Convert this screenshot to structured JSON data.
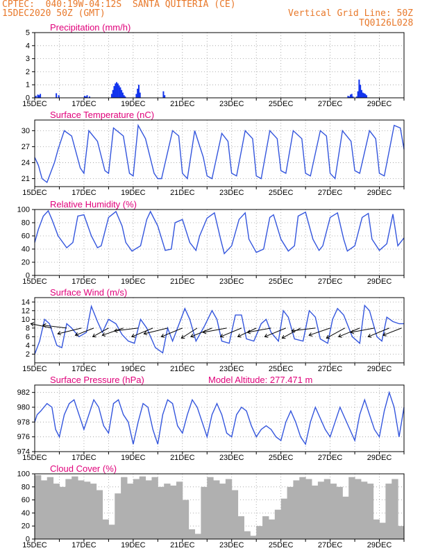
{
  "header": {
    "line1": "CPTEC:  040:19W-04:12S  SANTA QUITERIA (CE)",
    "line2": "15DEC2020 50Z (GMT)",
    "grid_note": "Vertical Grid Line: 50Z",
    "model_id": "TQ0126L028"
  },
  "colors": {
    "header": "#e8782a",
    "panel_title": "#e0007a",
    "series": "#3355dd",
    "precip_bar": "#1133ee",
    "cloud_bar": "#b0b0b0",
    "wind_arrow": "#000000",
    "axis": "#000000",
    "grid": "#9a9a9a"
  },
  "chart_data": [
    {
      "id": "precip",
      "type": "bar",
      "title": "Precipitation (mm/h)",
      "xlabels": [
        "15DEC",
        "17DEC",
        "19DEC",
        "21DEC",
        "23DEC",
        "25DEC",
        "27DEC",
        "29DEC"
      ],
      "ylim": [
        0,
        5
      ],
      "yticks": [
        0,
        1,
        2,
        3,
        4,
        5
      ],
      "x_range_days": [
        0,
        15
      ],
      "grid": true,
      "x": [
        0.02,
        0.1,
        0.15,
        0.2,
        0.85,
        0.95,
        2.0,
        2.05,
        2.1,
        2.2,
        3.1,
        3.15,
        3.2,
        3.25,
        3.3,
        3.35,
        3.4,
        3.45,
        3.5,
        3.55,
        3.6,
        3.65,
        4.1,
        4.15,
        4.2,
        4.25,
        5.2,
        5.25,
        12.7,
        12.75,
        12.8,
        12.85,
        12.9,
        13.05,
        13.1,
        13.15,
        13.2,
        13.25,
        13.3,
        13.35,
        13.4,
        13.45
      ],
      "values": [
        0.15,
        0.25,
        0.2,
        0.3,
        0.35,
        0.2,
        0.15,
        0.1,
        0.2,
        0.1,
        0.3,
        0.6,
        0.9,
        1.1,
        1.2,
        1.1,
        0.95,
        0.8,
        0.6,
        0.4,
        0.2,
        0.1,
        0.3,
        0.7,
        1.0,
        0.4,
        0.5,
        0.2,
        0.15,
        0.1,
        0.25,
        0.3,
        0.1,
        0.1,
        0.5,
        1.4,
        1.0,
        0.6,
        0.4,
        0.35,
        0.3,
        0.2
      ]
    },
    {
      "id": "temp",
      "type": "line",
      "title": "Surface Temperature (nC)",
      "xlabels": [
        "15DEC",
        "17DEC",
        "19DEC",
        "21DEC",
        "23DEC",
        "25DEC",
        "27DEC",
        "29DEC"
      ],
      "ylim": [
        19.5,
        32
      ],
      "yticks": [
        21,
        24,
        27,
        30
      ],
      "x_range_days": [
        0,
        15
      ],
      "grid": true,
      "x": [
        0,
        0.15,
        0.3,
        0.5,
        0.8,
        0.95,
        1.2,
        1.5,
        1.85,
        2.0,
        2.2,
        2.55,
        2.85,
        3.0,
        3.2,
        3.6,
        3.85,
        4.0,
        4.2,
        4.5,
        4.85,
        5.0,
        5.15,
        5.6,
        5.85,
        6.0,
        6.2,
        6.5,
        6.85,
        7.0,
        7.2,
        7.6,
        7.85,
        8.0,
        8.2,
        8.55,
        8.85,
        9.0,
        9.2,
        9.55,
        9.85,
        10.0,
        10.2,
        10.5,
        10.85,
        11.0,
        11.2,
        11.6,
        11.85,
        12.0,
        12.2,
        12.5,
        12.85,
        13.0,
        13.2,
        13.6,
        13.85,
        14.0,
        14.2,
        14.6,
        14.85,
        15.0
      ],
      "values": [
        25,
        23.5,
        21,
        20.3,
        24,
        26.5,
        30,
        29,
        23,
        22,
        30,
        28,
        22.5,
        22,
        30.5,
        29,
        22,
        21.5,
        31,
        28.5,
        22,
        21,
        21,
        30,
        29,
        22,
        21,
        30,
        25,
        21.5,
        21,
        29.5,
        28,
        22,
        21.5,
        30,
        28.5,
        21.5,
        21,
        30,
        28.5,
        22.5,
        22,
        30,
        28.5,
        22,
        21.5,
        30,
        29,
        22,
        21,
        30,
        28,
        22.5,
        22,
        30,
        28.5,
        22,
        21.5,
        31,
        30.5,
        26.5
      ]
    },
    {
      "id": "rh",
      "type": "line",
      "title": "Relative Humidity (%)",
      "xlabels": [
        "15DEC",
        "17DEC",
        "19DEC",
        "21DEC",
        "23DEC",
        "25DEC",
        "27DEC",
        "29DEC"
      ],
      "ylim": [
        0,
        100
      ],
      "yticks": [
        0,
        20,
        40,
        60,
        80,
        100
      ],
      "x_range_days": [
        0,
        15
      ],
      "grid": true,
      "x": [
        0,
        0.15,
        0.35,
        0.55,
        0.7,
        0.95,
        1.3,
        1.55,
        1.75,
        2.0,
        2.3,
        2.55,
        2.7,
        3.0,
        3.3,
        3.55,
        3.7,
        3.95,
        4.3,
        4.55,
        4.7,
        5.0,
        5.3,
        5.55,
        5.7,
        6.0,
        6.3,
        6.55,
        6.7,
        7.0,
        7.3,
        7.55,
        7.7,
        8.0,
        8.3,
        8.55,
        8.7,
        9.0,
        9.3,
        9.55,
        9.7,
        10.0,
        10.3,
        10.55,
        10.7,
        11.0,
        11.3,
        11.55,
        11.7,
        12.0,
        12.3,
        12.55,
        12.7,
        13.0,
        13.3,
        13.55,
        13.7,
        14.0,
        14.3,
        14.55,
        14.75,
        15.0
      ],
      "values": [
        50,
        70,
        90,
        98,
        85,
        60,
        42,
        50,
        90,
        92,
        60,
        42,
        45,
        88,
        97,
        75,
        50,
        37,
        45,
        85,
        97,
        75,
        38,
        40,
        80,
        85,
        50,
        38,
        60,
        87,
        95,
        55,
        33,
        45,
        85,
        95,
        55,
        35,
        40,
        88,
        92,
        55,
        37,
        45,
        90,
        96,
        55,
        38,
        45,
        88,
        95,
        55,
        37,
        45,
        88,
        94,
        55,
        38,
        48,
        93,
        45,
        57
      ]
    },
    {
      "id": "wind",
      "type": "line",
      "title": "Surface Wind (m/s)",
      "xlabels": [
        "15DEC",
        "17DEC",
        "19DEC",
        "21DEC",
        "23DEC",
        "25DEC",
        "27DEC",
        "29DEC"
      ],
      "ylim": [
        0,
        15
      ],
      "yticks": [
        2,
        4,
        6,
        8,
        10,
        12,
        14
      ],
      "x_range_days": [
        0,
        15
      ],
      "grid": true,
      "x": [
        0,
        0.2,
        0.4,
        0.6,
        0.9,
        1.1,
        1.3,
        1.5,
        1.8,
        2.1,
        2.3,
        2.55,
        2.75,
        3.0,
        3.3,
        3.55,
        3.8,
        4.05,
        4.3,
        4.55,
        4.9,
        5.2,
        5.4,
        5.6,
        5.9,
        6.1,
        6.3,
        6.55,
        6.9,
        7.2,
        7.4,
        7.6,
        7.9,
        8.15,
        8.4,
        8.6,
        8.9,
        9.2,
        9.4,
        9.6,
        9.9,
        10.1,
        10.3,
        10.55,
        10.9,
        11.15,
        11.4,
        11.6,
        11.9,
        12.1,
        12.3,
        12.55,
        12.9,
        13.2,
        13.4,
        13.6,
        13.9,
        14.1,
        14.3,
        14.55,
        14.8,
        15.0
      ],
      "values": [
        2,
        5,
        10,
        9,
        4,
        3.5,
        9,
        8,
        6,
        7,
        13,
        9.5,
        7,
        10,
        9,
        6.5,
        5,
        4.5,
        10,
        8,
        3.5,
        2.3,
        8,
        5,
        9.5,
        12.5,
        10,
        5,
        8.5,
        12,
        10,
        5,
        4.5,
        11,
        11,
        5.5,
        5,
        9,
        10,
        7,
        5,
        12,
        10.5,
        5.5,
        5,
        12,
        10.5,
        5.5,
        4.5,
        10,
        12.5,
        11,
        6,
        4.5,
        13.2,
        12,
        6,
        5,
        10.5,
        9.5,
        9,
        9
      ],
      "vectors": [
        {
          "x": 0.7,
          "u": -0.8,
          "v": 0.3
        },
        {
          "x": 1.3,
          "u": -0.9,
          "v": 0.2
        },
        {
          "x": 1.9,
          "u": -0.9,
          "v": -0.4
        },
        {
          "x": 2.4,
          "u": -0.7,
          "v": -0.5
        },
        {
          "x": 3.0,
          "u": -0.6,
          "v": -0.6
        },
        {
          "x": 3.6,
          "u": -0.8,
          "v": -0.5
        },
        {
          "x": 4.2,
          "u": -0.9,
          "v": -0.2
        },
        {
          "x": 4.8,
          "u": -0.8,
          "v": -0.6
        },
        {
          "x": 5.4,
          "u": -0.9,
          "v": -0.4
        },
        {
          "x": 6.0,
          "u": -0.8,
          "v": -0.6
        },
        {
          "x": 6.6,
          "u": -0.6,
          "v": -0.7
        },
        {
          "x": 7.2,
          "u": -0.8,
          "v": -0.6
        },
        {
          "x": 7.8,
          "u": -0.9,
          "v": -0.3
        },
        {
          "x": 8.4,
          "u": -0.8,
          "v": -0.6
        },
        {
          "x": 9.0,
          "u": -0.7,
          "v": -0.6
        },
        {
          "x": 9.6,
          "u": -0.9,
          "v": -0.3
        },
        {
          "x": 10.2,
          "u": -0.8,
          "v": -0.6
        },
        {
          "x": 10.8,
          "u": -0.7,
          "v": -0.7
        },
        {
          "x": 11.4,
          "u": -0.9,
          "v": -0.2
        },
        {
          "x": 12.0,
          "u": -0.8,
          "v": -0.5
        },
        {
          "x": 12.6,
          "u": -0.7,
          "v": -0.7
        },
        {
          "x": 13.2,
          "u": -0.8,
          "v": -0.6
        },
        {
          "x": 13.8,
          "u": -0.9,
          "v": -0.3
        },
        {
          "x": 14.4,
          "u": -0.8,
          "v": -0.6
        },
        {
          "x": 14.9,
          "u": -0.7,
          "v": -0.5
        }
      ]
    },
    {
      "id": "pres",
      "type": "line",
      "title": "Surface Pressure (hPa)",
      "subtitle": "Model Altitude: 277.471 m",
      "xlabels": [
        "15DEC",
        "17DEC",
        "19DEC",
        "21DEC",
        "23DEC",
        "25DEC",
        "27DEC",
        "29DEC"
      ],
      "ylim": [
        974,
        983
      ],
      "yticks": [
        974,
        976,
        978,
        980,
        982
      ],
      "x_range_days": [
        0,
        15
      ],
      "grid": true,
      "x": [
        0,
        0.1,
        0.25,
        0.5,
        0.7,
        0.85,
        1.0,
        1.2,
        1.4,
        1.6,
        1.8,
        2.0,
        2.2,
        2.4,
        2.6,
        2.8,
        3.0,
        3.2,
        3.4,
        3.6,
        3.8,
        4.0,
        4.2,
        4.4,
        4.6,
        4.8,
        5.0,
        5.2,
        5.4,
        5.6,
        5.8,
        6.0,
        6.2,
        6.4,
        6.6,
        6.8,
        7.0,
        7.2,
        7.4,
        7.6,
        7.8,
        8.0,
        8.2,
        8.4,
        8.6,
        8.8,
        9.0,
        9.2,
        9.4,
        9.6,
        9.8,
        10.0,
        10.2,
        10.4,
        10.6,
        10.8,
        11.0,
        11.2,
        11.4,
        11.6,
        11.8,
        12.0,
        12.2,
        12.4,
        12.6,
        12.8,
        13.0,
        13.2,
        13.4,
        13.6,
        13.8,
        14.0,
        14.2,
        14.4,
        14.6,
        14.8,
        15.0
      ],
      "values": [
        978,
        979,
        979.5,
        980.5,
        980,
        977,
        976,
        979,
        980.5,
        981,
        979,
        977,
        979,
        981,
        980,
        977.5,
        976.5,
        980.5,
        981,
        979,
        978,
        975,
        978,
        980.5,
        980,
        977,
        975,
        979,
        981,
        980.5,
        977.5,
        976.5,
        979,
        981,
        980,
        978,
        976,
        979,
        980.5,
        979,
        976.5,
        976,
        979,
        980,
        979.5,
        977.5,
        976,
        977,
        977.5,
        977,
        976,
        975.5,
        978,
        979.5,
        978,
        976,
        975,
        978,
        980,
        978.5,
        977,
        976,
        978,
        980,
        978.5,
        977,
        975.5,
        979,
        981,
        979,
        977,
        976,
        979.5,
        982,
        980,
        976,
        980
      ]
    },
    {
      "id": "cloud",
      "type": "bar",
      "title": "Cloud Cover (%)",
      "xlabels": [
        "15DEC",
        "17DEC",
        "19DEC",
        "21DEC",
        "23DEC",
        "25DEC",
        "27DEC",
        "29DEC"
      ],
      "ylim": [
        0,
        100
      ],
      "yticks": [
        0,
        20,
        40,
        60,
        80,
        100
      ],
      "x_range_days": [
        0,
        15
      ],
      "grid": true,
      "x": [
        0,
        0.25,
        0.5,
        0.75,
        1.0,
        1.25,
        1.5,
        1.75,
        2.0,
        2.25,
        2.5,
        2.75,
        3.0,
        3.25,
        3.5,
        3.75,
        4.0,
        4.25,
        4.5,
        4.75,
        5.0,
        5.25,
        5.5,
        5.75,
        6.0,
        6.25,
        6.5,
        6.75,
        7.0,
        7.25,
        7.5,
        7.75,
        8.0,
        8.25,
        8.5,
        8.75,
        9.0,
        9.25,
        9.5,
        9.75,
        10.0,
        10.25,
        10.5,
        10.75,
        11.0,
        11.25,
        11.5,
        11.75,
        12.0,
        12.25,
        12.5,
        12.75,
        13.0,
        13.25,
        13.5,
        13.75,
        14.0,
        14.25,
        14.5,
        14.75
      ],
      "values": [
        98,
        90,
        95,
        85,
        80,
        92,
        96,
        90,
        88,
        85,
        75,
        30,
        22,
        70,
        95,
        85,
        92,
        96,
        90,
        95,
        80,
        85,
        82,
        88,
        60,
        15,
        8,
        80,
        95,
        90,
        85,
        92,
        75,
        35,
        12,
        5,
        20,
        35,
        30,
        45,
        62,
        80,
        90,
        95,
        92,
        82,
        88,
        92,
        85,
        80,
        65,
        95,
        92,
        88,
        85,
        30,
        25,
        85,
        92,
        20
      ]
    }
  ]
}
